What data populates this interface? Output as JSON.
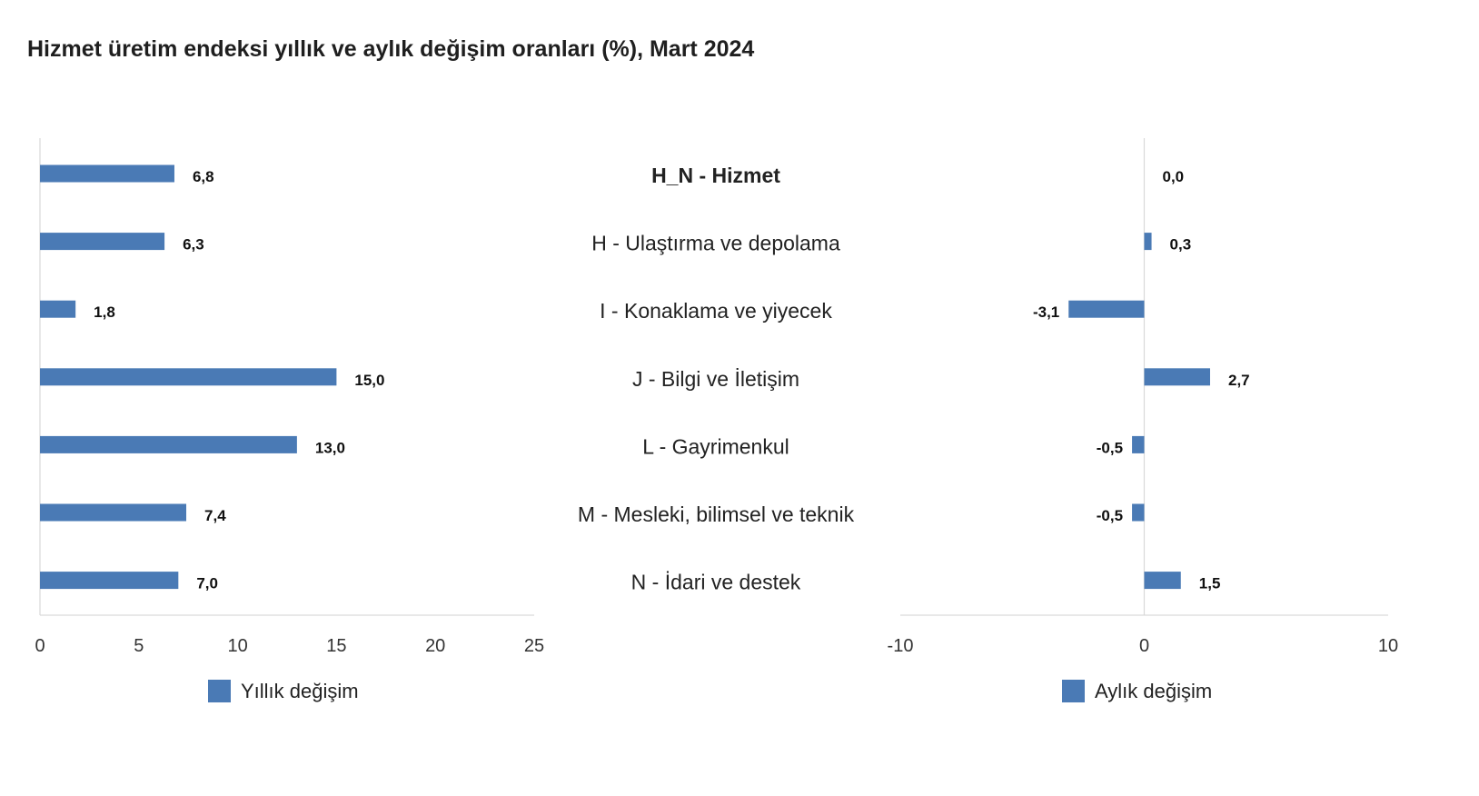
{
  "chart_data": [
    {
      "type": "bar",
      "orientation": "horizontal",
      "title": "Hizmet üretim endeksi yıllık ve aylık değişim oranları (%), Mart 2024",
      "categories": [
        "H_N - Hizmet",
        "H - Ulaştırma ve depolama",
        "I - Konaklama ve yiyecek",
        "J - Bilgi ve İletişim",
        "L - Gayrimenkul",
        "M - Mesleki, bilimsel ve teknik",
        "N - İdari ve destek"
      ],
      "series": [
        {
          "name": "Yıllık değişim",
          "values": [
            6.8,
            6.3,
            1.8,
            15.0,
            13.0,
            7.4,
            7.0
          ],
          "labels": [
            "6,8",
            "6,3",
            "1,8",
            "15,0",
            "13,0",
            "7,4",
            "7,0"
          ]
        }
      ],
      "xlim": [
        0,
        25
      ],
      "xticks": [
        "0",
        "5",
        "10",
        "15",
        "20",
        "25"
      ],
      "xtick_values": [
        0,
        5,
        10,
        15,
        20,
        25
      ],
      "color": "#4a7ab5",
      "legend": "bottom"
    },
    {
      "type": "bar",
      "orientation": "horizontal",
      "categories": [
        "H_N - Hizmet",
        "H - Ulaştırma ve depolama",
        "I - Konaklama ve yiyecek",
        "J - Bilgi ve İletişim",
        "L - Gayrimenkul",
        "M - Mesleki, bilimsel ve teknik",
        "N - İdari ve destek"
      ],
      "series": [
        {
          "name": "Aylık değişim",
          "values": [
            0.0,
            0.3,
            -3.1,
            2.7,
            -0.5,
            -0.5,
            1.5
          ],
          "labels": [
            "0,0",
            "0,3",
            "-3,1",
            "2,7",
            "-0,5",
            "-0,5",
            "1,5"
          ]
        }
      ],
      "xlim": [
        -10,
        10
      ],
      "xticks": [
        "-10",
        "0",
        "10"
      ],
      "xtick_values": [
        -10,
        0,
        10
      ],
      "color": "#4a7ab5",
      "legend": "bottom"
    }
  ]
}
